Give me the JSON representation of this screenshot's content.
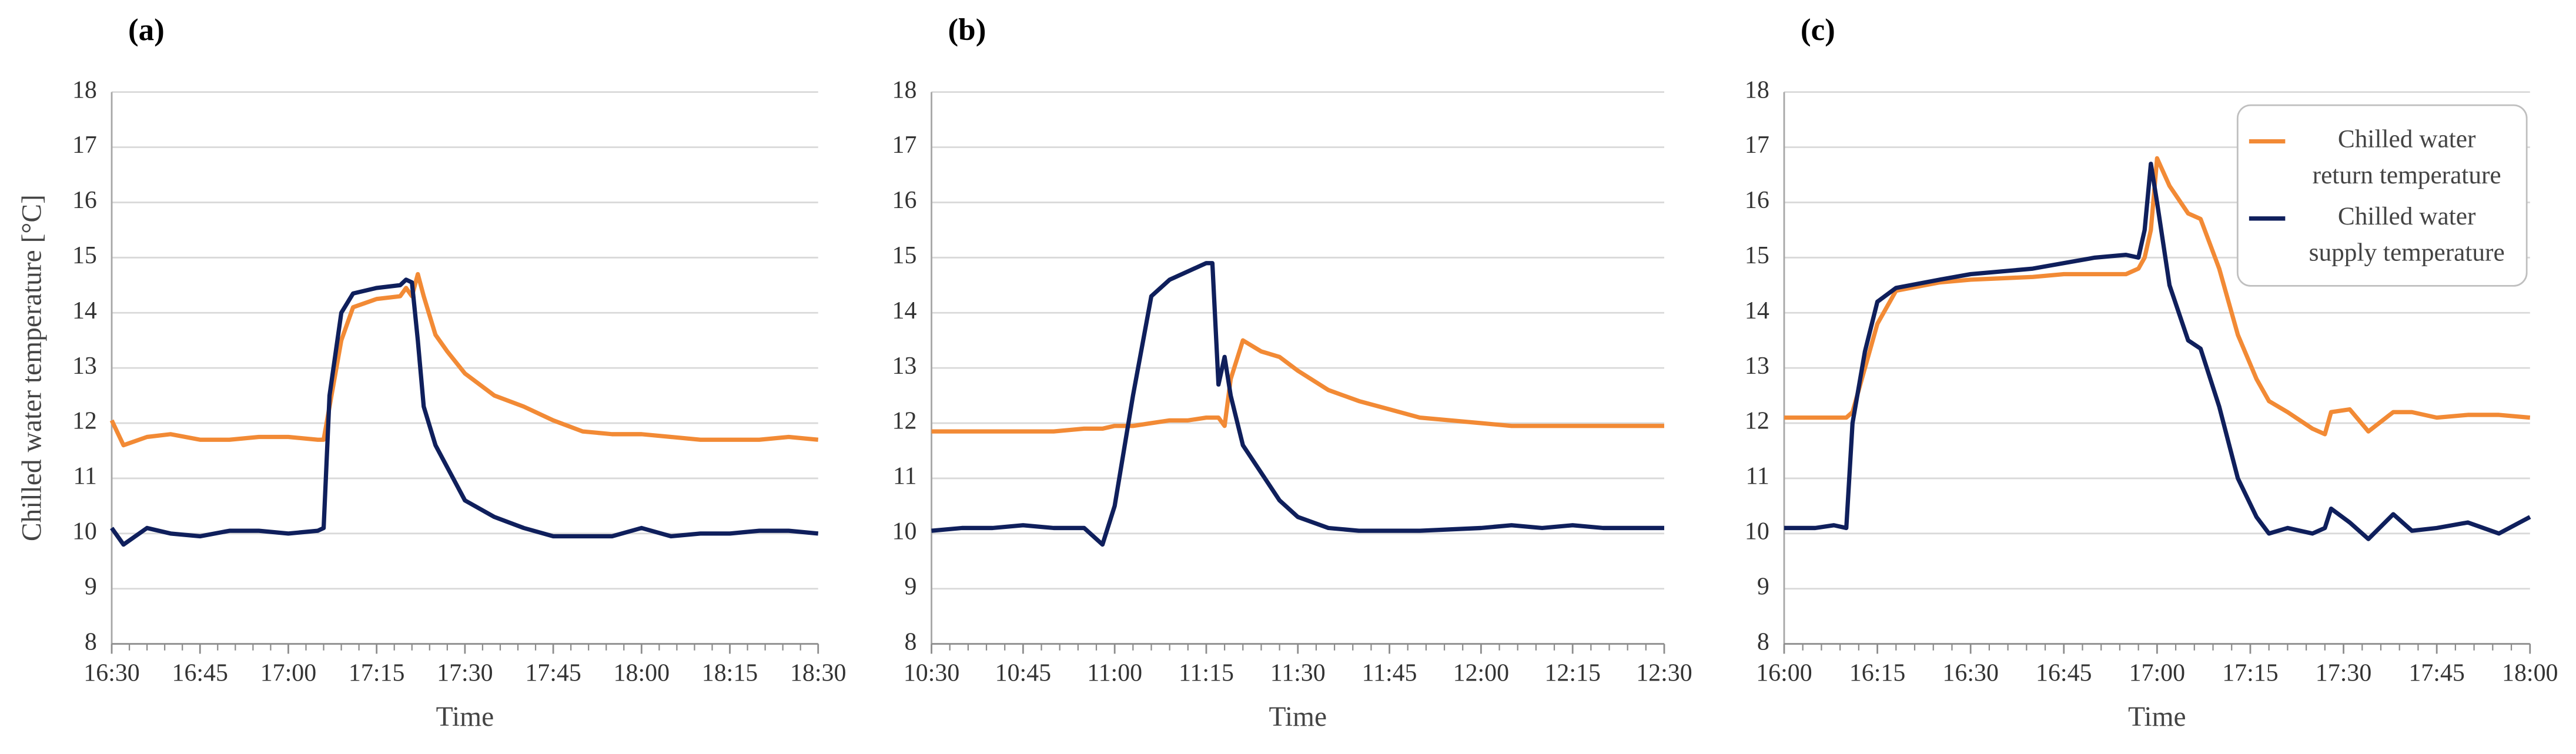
{
  "chart_data": [
    {
      "type": "line",
      "title": "(a)",
      "y_label": "Chilled water  temperature [°C]",
      "x_label": "Time",
      "x": [
        "16:30",
        "16:32",
        "16:36",
        "16:40",
        "16:45",
        "16:50",
        "16:55",
        "17:00",
        "17:05",
        "17:06",
        "17:07",
        "17:09",
        "17:11",
        "17:15",
        "17:19",
        "17:20",
        "17:21",
        "17:22",
        "17:23",
        "17:25",
        "17:27",
        "17:30",
        "17:35",
        "17:40",
        "17:45",
        "17:50",
        "17:55",
        "18:00",
        "18:05",
        "18:10",
        "18:15",
        "18:20",
        "18:25",
        "18:30"
      ],
      "series": [
        {
          "color": "#f28a35",
          "values": [
            12.05,
            11.6,
            11.75,
            11.8,
            11.7,
            11.7,
            11.75,
            11.75,
            11.7,
            11.7,
            12.3,
            13.5,
            14.1,
            14.25,
            14.3,
            14.45,
            14.3,
            14.7,
            14.3,
            13.6,
            13.3,
            12.9,
            12.5,
            12.3,
            12.05,
            11.85,
            11.8,
            11.8,
            11.75,
            11.7,
            11.7,
            11.7,
            11.75,
            11.7
          ]
        },
        {
          "color": "#0f1f5c",
          "values": [
            10.1,
            9.8,
            10.1,
            10.0,
            9.95,
            10.05,
            10.05,
            10.0,
            10.05,
            10.1,
            12.5,
            14.0,
            14.35,
            14.45,
            14.5,
            14.6,
            14.55,
            13.5,
            12.3,
            11.6,
            11.2,
            10.6,
            10.3,
            10.1,
            9.95,
            9.95,
            9.95,
            10.1,
            9.95,
            10.0,
            10.0,
            10.05,
            10.05,
            10.0
          ]
        }
      ],
      "xlim": [
        "16:30",
        "18:30"
      ],
      "xticks": [
        "16:30",
        "16:45",
        "17:00",
        "17:15",
        "17:30",
        "17:45",
        "18:00",
        "18:15",
        "18:30"
      ],
      "ylim": [
        8,
        18
      ],
      "yticks": [
        8,
        9,
        10,
        11,
        12,
        13,
        14,
        15,
        16,
        17,
        18
      ],
      "grid": true
    },
    {
      "type": "line",
      "title": "(b)",
      "x_label": "Time",
      "x": [
        "10:30",
        "10:35",
        "10:40",
        "10:45",
        "10:50",
        "10:55",
        "10:58",
        "11:00",
        "11:03",
        "11:06",
        "11:09",
        "11:12",
        "11:15",
        "11:16",
        "11:17",
        "11:18",
        "11:19",
        "11:21",
        "11:24",
        "11:27",
        "11:30",
        "11:35",
        "11:40",
        "11:45",
        "11:50",
        "12:00",
        "12:05",
        "12:10",
        "12:15",
        "12:20",
        "12:25",
        "12:30"
      ],
      "series": [
        {
          "color": "#f28a35",
          "values": [
            11.85,
            11.85,
            11.85,
            11.85,
            11.85,
            11.9,
            11.9,
            11.95,
            11.95,
            12.0,
            12.05,
            12.05,
            12.1,
            12.1,
            12.1,
            11.95,
            12.8,
            13.5,
            13.3,
            13.2,
            12.95,
            12.6,
            12.4,
            12.25,
            12.1,
            12.0,
            11.95,
            11.95,
            11.95,
            11.95,
            11.95,
            11.95
          ]
        },
        {
          "color": "#0f1f5c",
          "values": [
            10.05,
            10.1,
            10.1,
            10.15,
            10.1,
            10.1,
            9.8,
            10.5,
            12.5,
            14.3,
            14.6,
            14.75,
            14.9,
            14.9,
            12.7,
            13.2,
            12.5,
            11.6,
            11.1,
            10.6,
            10.3,
            10.1,
            10.05,
            10.05,
            10.05,
            10.1,
            10.15,
            10.1,
            10.15,
            10.1,
            10.1,
            10.1
          ]
        }
      ],
      "xlim": [
        "10:30",
        "12:30"
      ],
      "xticks": [
        "10:30",
        "10:45",
        "11:00",
        "11:15",
        "11:30",
        "11:45",
        "12:00",
        "12:15",
        "12:30"
      ],
      "ylim": [
        8,
        18
      ],
      "yticks": [
        8,
        9,
        10,
        11,
        12,
        13,
        14,
        15,
        16,
        17,
        18
      ],
      "grid": true
    },
    {
      "type": "line",
      "title": "(c)",
      "x_label": "Time",
      "x": [
        "16:00",
        "16:05",
        "16:08",
        "16:10",
        "16:11",
        "16:13",
        "16:15",
        "16:18",
        "16:25",
        "16:30",
        "16:40",
        "16:45",
        "16:50",
        "16:55",
        "16:57",
        "16:58",
        "16:59",
        "17:00",
        "17:02",
        "17:05",
        "17:07",
        "17:10",
        "17:13",
        "17:16",
        "17:18",
        "17:21",
        "17:25",
        "17:27",
        "17:28",
        "17:31",
        "17:34",
        "17:38",
        "17:41",
        "17:45",
        "17:50",
        "17:55",
        "18:00"
      ],
      "series": [
        {
          "name": "Chilled water return temperature",
          "color": "#f28a35",
          "values": [
            12.1,
            12.1,
            12.1,
            12.1,
            12.2,
            13.0,
            13.8,
            14.4,
            14.55,
            14.6,
            14.65,
            14.7,
            14.7,
            14.7,
            14.8,
            15.0,
            15.5,
            16.8,
            16.3,
            15.8,
            15.7,
            14.8,
            13.6,
            12.8,
            12.4,
            12.2,
            11.9,
            11.8,
            12.2,
            12.25,
            11.85,
            12.2,
            12.2,
            12.1,
            12.15,
            12.15,
            12.1
          ]
        },
        {
          "name": "Chilled water supply temperature",
          "color": "#0f1f5c",
          "values": [
            10.1,
            10.1,
            10.15,
            10.1,
            12.0,
            13.3,
            14.2,
            14.45,
            14.6,
            14.7,
            14.8,
            14.9,
            15.0,
            15.05,
            15.0,
            15.5,
            16.7,
            16.0,
            14.5,
            13.5,
            13.35,
            12.3,
            11.0,
            10.3,
            10.0,
            10.1,
            10.0,
            10.1,
            10.45,
            10.2,
            9.9,
            10.35,
            10.05,
            10.1,
            10.2,
            10.0,
            10.3
          ]
        }
      ],
      "xlim": [
        "16:00",
        "18:00"
      ],
      "xticks": [
        "16:00",
        "16:15",
        "16:30",
        "16:45",
        "17:00",
        "17:15",
        "17:30",
        "17:45",
        "18:00"
      ],
      "ylim": [
        8,
        18
      ],
      "yticks": [
        8,
        9,
        10,
        11,
        12,
        13,
        14,
        15,
        16,
        17,
        18
      ],
      "grid": true,
      "legend": "top-right"
    }
  ]
}
